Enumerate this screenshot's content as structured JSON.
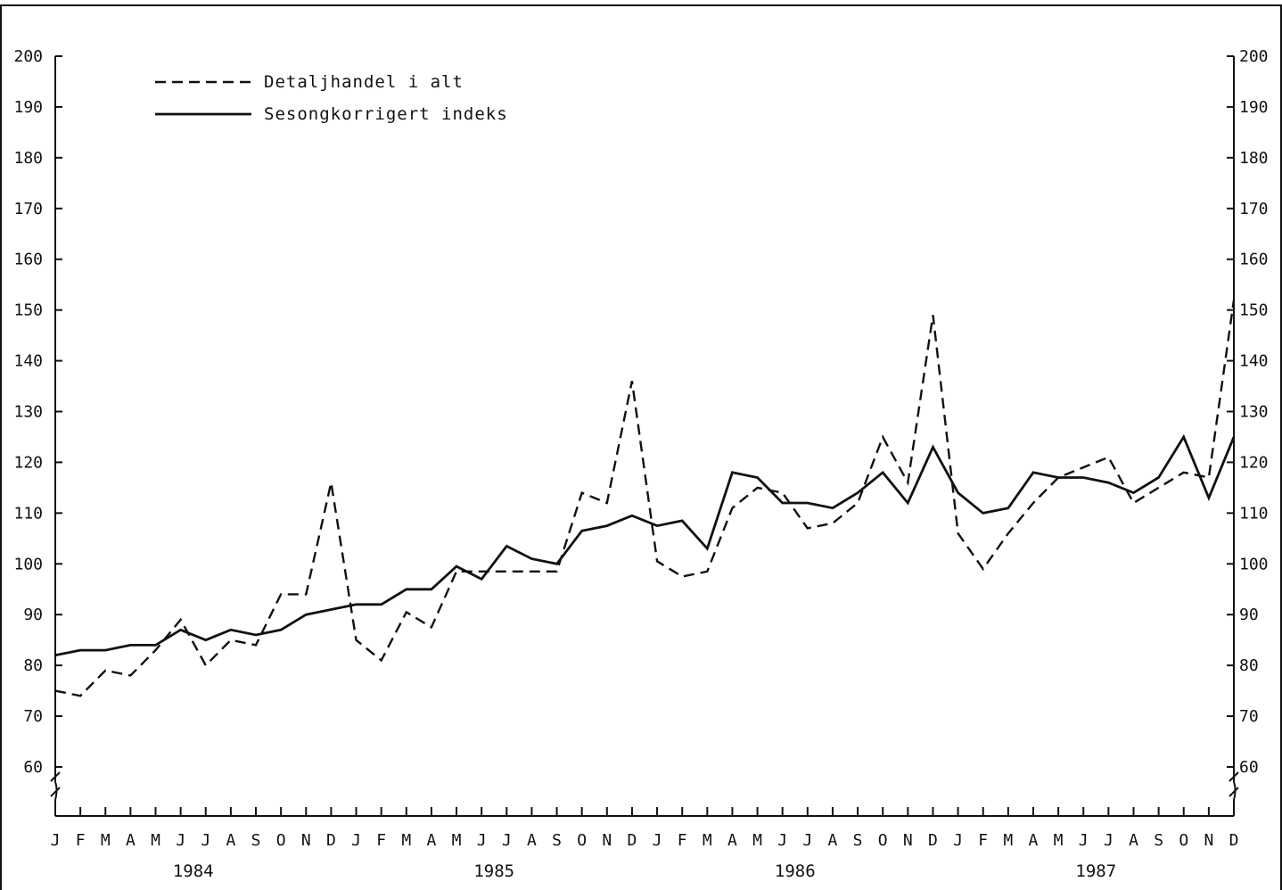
{
  "chart_data": {
    "type": "line",
    "title": "",
    "xlabel": "",
    "ylabel": "",
    "ylim": [
      50,
      200
    ],
    "yticks": [
      60,
      70,
      80,
      90,
      100,
      110,
      120,
      130,
      140,
      150,
      160,
      170,
      180,
      190,
      200
    ],
    "axis_break": true,
    "dual_y_axis": true,
    "grid": false,
    "legend_position": "top-left",
    "month_labels": [
      "J",
      "F",
      "M",
      "A",
      "M",
      "J",
      "J",
      "A",
      "S",
      "O",
      "N",
      "D",
      "J",
      "F",
      "M",
      "A",
      "M",
      "J",
      "J",
      "A",
      "S",
      "O",
      "N",
      "D",
      "J",
      "F",
      "M",
      "A",
      "M",
      "J",
      "J",
      "A",
      "S",
      "O",
      "N",
      "D",
      "J",
      "F",
      "M",
      "A",
      "M",
      "J",
      "J",
      "A",
      "S",
      "O",
      "N",
      "D"
    ],
    "years": [
      "1984",
      "1985",
      "1986",
      "1987"
    ],
    "series": [
      {
        "name": "Detaljhandel i alt",
        "style": "dashed",
        "color": "#111111",
        "values": [
          75,
          74,
          79,
          78,
          83,
          89,
          80,
          85,
          84,
          94,
          94,
          116,
          85,
          81,
          90.5,
          87.5,
          98.5,
          98.5,
          98.5,
          98.5,
          98.5,
          114,
          112,
          136,
          100.5,
          97.5,
          98.5,
          111,
          115,
          114,
          107,
          108,
          112,
          125,
          116,
          149,
          106,
          99,
          106,
          112,
          117,
          119,
          121,
          112,
          115,
          118,
          117,
          152
        ]
      },
      {
        "name": "Sesongkorrigert indeks",
        "style": "solid",
        "color": "#111111",
        "values": [
          82,
          83,
          83,
          84,
          84,
          87,
          85,
          87,
          86,
          87,
          90,
          91,
          92,
          92,
          95,
          95,
          99.5,
          97,
          103.5,
          101,
          100,
          106.5,
          107.5,
          109.5,
          107.5,
          108.5,
          103,
          118,
          117,
          112,
          112,
          111,
          114,
          118,
          112,
          123,
          114,
          110,
          111,
          118,
          117,
          117,
          116,
          114,
          117,
          125,
          113,
          125
        ]
      }
    ]
  }
}
